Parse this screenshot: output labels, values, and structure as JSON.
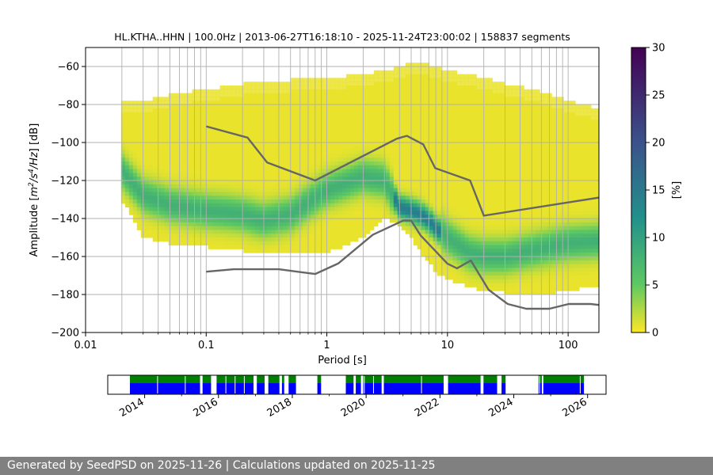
{
  "chart_data": {
    "type": "heatmap",
    "title": "HL.KTHA..HHN | 100.0Hz | 2013-06-27T16:18:10 - 2025-11-24T23:00:02 | 158837 segments",
    "xlabel": "Period [s]",
    "ylabel_parts": {
      "a": "Amplitude [",
      "b": "m",
      "c": "2",
      "d": "/s",
      "e": "4",
      "f": "/Hz",
      "g": "] [dB]"
    },
    "xscale": "log",
    "xlim": [
      0.01,
      180
    ],
    "ylim": [
      -200,
      -50
    ],
    "xticks": [
      {
        "v": 0.01,
        "label": "0.01"
      },
      {
        "v": 0.1,
        "label": "0.1"
      },
      {
        "v": 1,
        "label": "1"
      },
      {
        "v": 10,
        "label": "10"
      },
      {
        "v": 100,
        "label": "100"
      }
    ],
    "yticks": [
      {
        "v": -60,
        "label": "−60"
      },
      {
        "v": -80,
        "label": "−80"
      },
      {
        "v": -100,
        "label": "−100"
      },
      {
        "v": -120,
        "label": "−120"
      },
      {
        "v": -140,
        "label": "−140"
      },
      {
        "v": -160,
        "label": "−160"
      },
      {
        "v": -180,
        "label": "−180"
      },
      {
        "v": -200,
        "label": "−200"
      }
    ],
    "grid_periods": [
      0.02,
      0.03,
      0.04,
      0.05,
      0.06,
      0.07,
      0.08,
      0.09,
      0.1,
      0.2,
      0.3,
      0.4,
      0.5,
      0.6,
      0.7,
      0.8,
      0.9,
      1,
      2,
      3,
      4,
      5,
      6,
      7,
      8,
      9,
      10,
      20,
      30,
      40,
      50,
      60,
      70,
      80,
      90,
      100
    ],
    "envelope": {
      "period": [
        0.02,
        0.03,
        0.05,
        0.1,
        0.2,
        0.3,
        0.5,
        0.8,
        1,
        2,
        3,
        4,
        5,
        6,
        8,
        10,
        15,
        20,
        30,
        50,
        80,
        100,
        180
      ],
      "upper": [
        -78,
        -78,
        -75,
        -72,
        -69,
        -68,
        -67,
        -67,
        -66,
        -64,
        -62,
        -60,
        -58,
        -58,
        -60,
        -62,
        -64,
        -66,
        -69,
        -72,
        -76,
        -78,
        -82
      ],
      "lower": [
        -130,
        -150,
        -153,
        -155,
        -157,
        -158,
        -159,
        -158,
        -158,
        -150,
        -140,
        -143,
        -150,
        -158,
        -168,
        -172,
        -176,
        -178,
        -179,
        -180,
        -179,
        -178,
        -175
      ]
    },
    "mode": {
      "period": [
        0.02,
        0.03,
        0.05,
        0.08,
        0.1,
        0.15,
        0.2,
        0.3,
        0.5,
        0.8,
        1,
        1.5,
        2,
        3,
        4,
        5,
        6,
        7,
        8,
        10,
        15,
        20,
        30,
        50,
        100,
        180
      ],
      "db": [
        -115,
        -128,
        -133,
        -135,
        -136,
        -137,
        -138,
        -141,
        -138,
        -129,
        -125,
        -121,
        -118,
        -120,
        -134,
        -136,
        -138,
        -141,
        -145,
        -150,
        -158,
        -160,
        -160,
        -157,
        -153,
        -152
      ]
    },
    "nhnm": {
      "period": [
        0.1,
        0.22,
        0.32,
        0.8,
        3.8,
        4.6,
        6.3,
        7.9,
        15.4,
        20,
        180
      ],
      "db": [
        -91.5,
        -97.4,
        -110.5,
        -120,
        -98,
        -96.5,
        -101,
        -113.5,
        -120,
        -138.5,
        -129
      ]
    },
    "nlnm": {
      "period": [
        0.1,
        0.17,
        0.4,
        0.8,
        1.24,
        2.4,
        4.3,
        5,
        6,
        10,
        12,
        15.6,
        21.9,
        31.6,
        45,
        70,
        101,
        154,
        180
      ],
      "db": [
        -168,
        -166.7,
        -166.7,
        -169.2,
        -163.7,
        -148.6,
        -141.1,
        -141.1,
        -149,
        -163.8,
        -166.2,
        -162.1,
        -177.5,
        -185,
        -187.5,
        -187.5,
        -185,
        -185,
        -185.5
      ]
    },
    "colorbar": {
      "label": "[%]",
      "min": 0,
      "max": 30,
      "ticks": [
        {
          "v": 0,
          "label": "0"
        },
        {
          "v": 5,
          "label": "5"
        },
        {
          "v": 10,
          "label": "10"
        },
        {
          "v": 15,
          "label": "15"
        },
        {
          "v": 20,
          "label": "20"
        },
        {
          "v": 25,
          "label": "25"
        },
        {
          "v": 30,
          "label": "30"
        }
      ],
      "stops": [
        "#fde725",
        "#5ec962",
        "#21918c",
        "#3b528b",
        "#440154"
      ]
    },
    "coverage": {
      "start_year": 2013.0,
      "end_year": 2026.5,
      "colors": {
        "data": "#0000ff",
        "gaps": "#008000"
      },
      "year_ticks": [
        {
          "v": 2014,
          "label": "2014"
        },
        {
          "v": 2016,
          "label": "2016"
        },
        {
          "v": 2018,
          "label": "2018"
        },
        {
          "v": 2020,
          "label": "2020"
        },
        {
          "v": 2022,
          "label": "2022"
        },
        {
          "v": 2024,
          "label": "2024"
        },
        {
          "v": 2026,
          "label": "2026"
        }
      ],
      "segments": [
        [
          2013.6,
          2015.5
        ],
        [
          2015.57,
          2015.8
        ],
        [
          2015.95,
          2016.95
        ],
        [
          2017.04,
          2017.25
        ],
        [
          2017.35,
          2017.65
        ],
        [
          2017.72,
          2017.78
        ],
        [
          2017.9,
          2018.1
        ],
        [
          2018.68,
          2018.78
        ],
        [
          2019.45,
          2019.66
        ],
        [
          2019.72,
          2019.86
        ],
        [
          2019.92,
          2020.42
        ],
        [
          2020.48,
          2022.1
        ],
        [
          2022.22,
          2023.1
        ],
        [
          2023.18,
          2023.55
        ],
        [
          2023.67,
          2023.78
        ],
        [
          2024.67,
          2024.76
        ],
        [
          2024.8,
          2025.9
        ]
      ],
      "gap_markers": [
        2014.35,
        2015.1,
        2016.2,
        2016.45,
        2016.7,
        2019.95,
        2020.2,
        2021.5,
        2024.7,
        2025.8
      ]
    }
  },
  "footer": {
    "text": "Generated by SeedPSD on 2025-11-26 | Calculations updated on 2025-11-25"
  }
}
